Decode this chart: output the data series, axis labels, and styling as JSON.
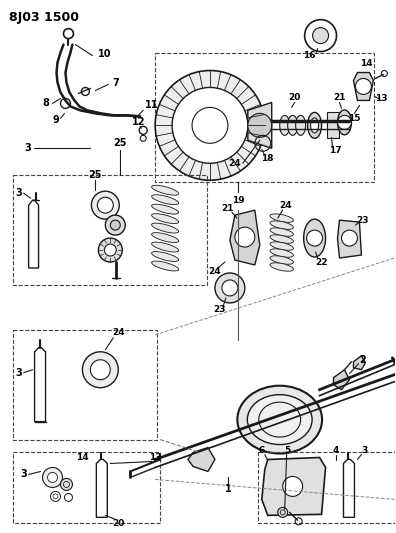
{
  "title": "8J03 1500",
  "bg": "#ffffff",
  "lc": "#1a1a1a",
  "fig_width": 3.96,
  "fig_height": 5.33,
  "dpi": 100
}
